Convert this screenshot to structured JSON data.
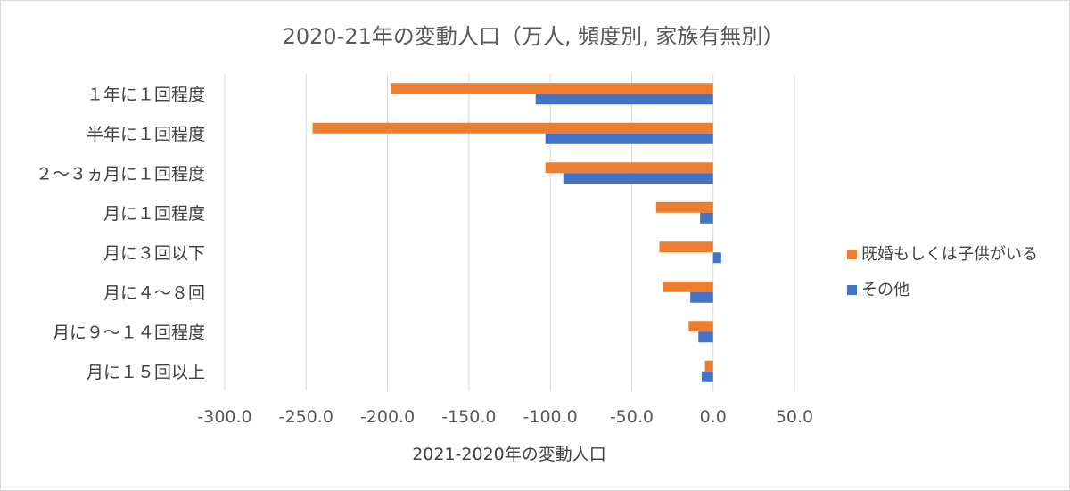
{
  "chart_data": {
    "type": "bar",
    "orientation": "horizontal",
    "title": "2020-21年の変動人口（万人, 頻度別, 家族有無別）",
    "xlabel": "2021-2020年の変動人口",
    "ylabel": "",
    "xlim": [
      -300,
      50
    ],
    "x_ticks": [
      "-300.0",
      "-250.0",
      "-200.0",
      "-150.0",
      "-100.0",
      "-50.0",
      "0.0",
      "50.0"
    ],
    "x_tick_values": [
      -300,
      -250,
      -200,
      -150,
      -100,
      -50,
      0,
      50
    ],
    "grid": true,
    "legend_position": "right",
    "categories": [
      "１年に１回程度",
      "半年に１回程度",
      "２～３ヵ月に１回程度",
      "月に１回程度",
      "月に３回以下",
      "月に４～８回",
      "月に９～１４回程度",
      "月に１５回以上"
    ],
    "series": [
      {
        "name": "既婚もしくは子供がいる",
        "color": "#ED7D31",
        "values": [
          -198,
          -246,
          -103,
          -35,
          -33,
          -31,
          -15,
          -5
        ]
      },
      {
        "name": "その他",
        "color": "#4472C4",
        "values": [
          -109,
          -103,
          -92,
          -8,
          5,
          -14,
          -9,
          -7
        ]
      }
    ]
  }
}
